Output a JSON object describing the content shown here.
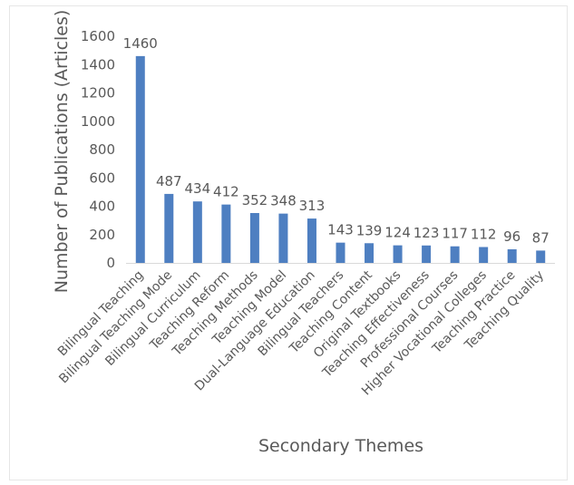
{
  "chart_data": {
    "type": "bar",
    "xlabel": "Secondary Themes",
    "ylabel": "Number of Publications (Articles)",
    "ylim": [
      0,
      1600
    ],
    "yticks": [
      0,
      200,
      400,
      600,
      800,
      1000,
      1200,
      1400,
      1600
    ],
    "grid": false,
    "legend": "none",
    "bar_color": "#4E7FC1",
    "categories": [
      "Bilingual Teaching",
      "Bilingual Teaching Mode",
      "Bilingual Curriculum",
      "Teaching Reform",
      "Teaching Methods",
      "Teaching Model",
      "Dual-Language Education",
      "Bilingual Teachers",
      "Teaching Content",
      "Original Textbooks",
      "Teaching Effectiveness",
      "Professional Courses",
      "Higher Vocational Colleges",
      "Teaching Practice",
      "Teaching Quality"
    ],
    "values": [
      1460,
      487,
      434,
      412,
      352,
      348,
      313,
      143,
      139,
      124,
      123,
      117,
      112,
      96,
      87
    ]
  }
}
